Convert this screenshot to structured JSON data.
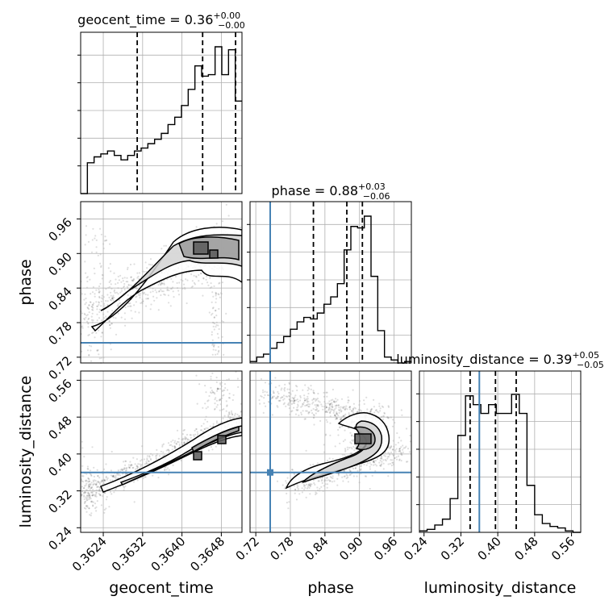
{
  "chart_data": {
    "type": "corner",
    "colors": {
      "truth": "#4682b4",
      "hist": "#000000",
      "grid": "#b0b0b0",
      "contour_fill": "#808080"
    },
    "truth": {
      "phase": 0.745,
      "luminosity_distance": 0.36
    },
    "params": [
      {
        "key": "geocent_time",
        "label": "geocent_time",
        "title": "geocent_time = 0.36",
        "title_sup": "+0.00",
        "title_sub": "−0.00",
        "range": [
          0.36194,
          0.36522
        ],
        "ticks": [
          0.3624,
          0.3632,
          0.364,
          0.3648
        ],
        "tick_labels": [
          "0.3624",
          "0.3632",
          "0.3640",
          "0.3648"
        ],
        "quantiles": [
          0.36309,
          0.36442,
          0.36509
        ]
      },
      {
        "key": "phase",
        "label": "phase",
        "title": "phase = 0.88",
        "title_sup": "+0.03",
        "title_sub": "−0.06",
        "range": [
          0.71,
          0.99
        ],
        "ticks": [
          0.72,
          0.78,
          0.84,
          0.9,
          0.96
        ],
        "tick_labels": [
          "0.72",
          "0.78",
          "0.84",
          "0.90",
          "0.96"
        ],
        "quantiles": [
          0.82,
          0.878,
          0.905
        ]
      },
      {
        "key": "luminosity_distance",
        "label": "luminosity_distance",
        "title": "luminosity_distance = 0.39",
        "title_sup": "+0.05",
        "title_sub": "−0.05",
        "range": [
          0.23,
          0.58
        ],
        "ticks": [
          0.24,
          0.32,
          0.4,
          0.48,
          0.56
        ],
        "tick_labels": [
          "0.24",
          "0.32",
          "0.40",
          "0.48",
          "0.56"
        ],
        "quantiles": [
          0.34,
          0.395,
          0.44
        ]
      }
    ],
    "hist": {
      "geocent_time": [
        0.0,
        0.21,
        0.25,
        0.27,
        0.29,
        0.26,
        0.23,
        0.26,
        0.29,
        0.31,
        0.34,
        0.37,
        0.41,
        0.47,
        0.52,
        0.6,
        0.71,
        0.87,
        0.8,
        0.81,
        1.0,
        0.81,
        0.98,
        0.63
      ],
      "phase": [
        0.01,
        0.04,
        0.06,
        0.1,
        0.14,
        0.18,
        0.23,
        0.28,
        0.31,
        0.3,
        0.34,
        0.4,
        0.45,
        0.54,
        0.77,
        0.93,
        0.92,
        1.0,
        0.59,
        0.22,
        0.04,
        0.02,
        0.0,
        0.01
      ],
      "luminosity_distance": [
        0.01,
        0.02,
        0.05,
        0.09,
        0.23,
        0.66,
        0.93,
        0.87,
        0.81,
        0.87,
        0.81,
        0.81,
        0.94,
        0.81,
        0.32,
        0.12,
        0.06,
        0.04,
        0.03,
        0.01,
        0.0
      ]
    }
  }
}
